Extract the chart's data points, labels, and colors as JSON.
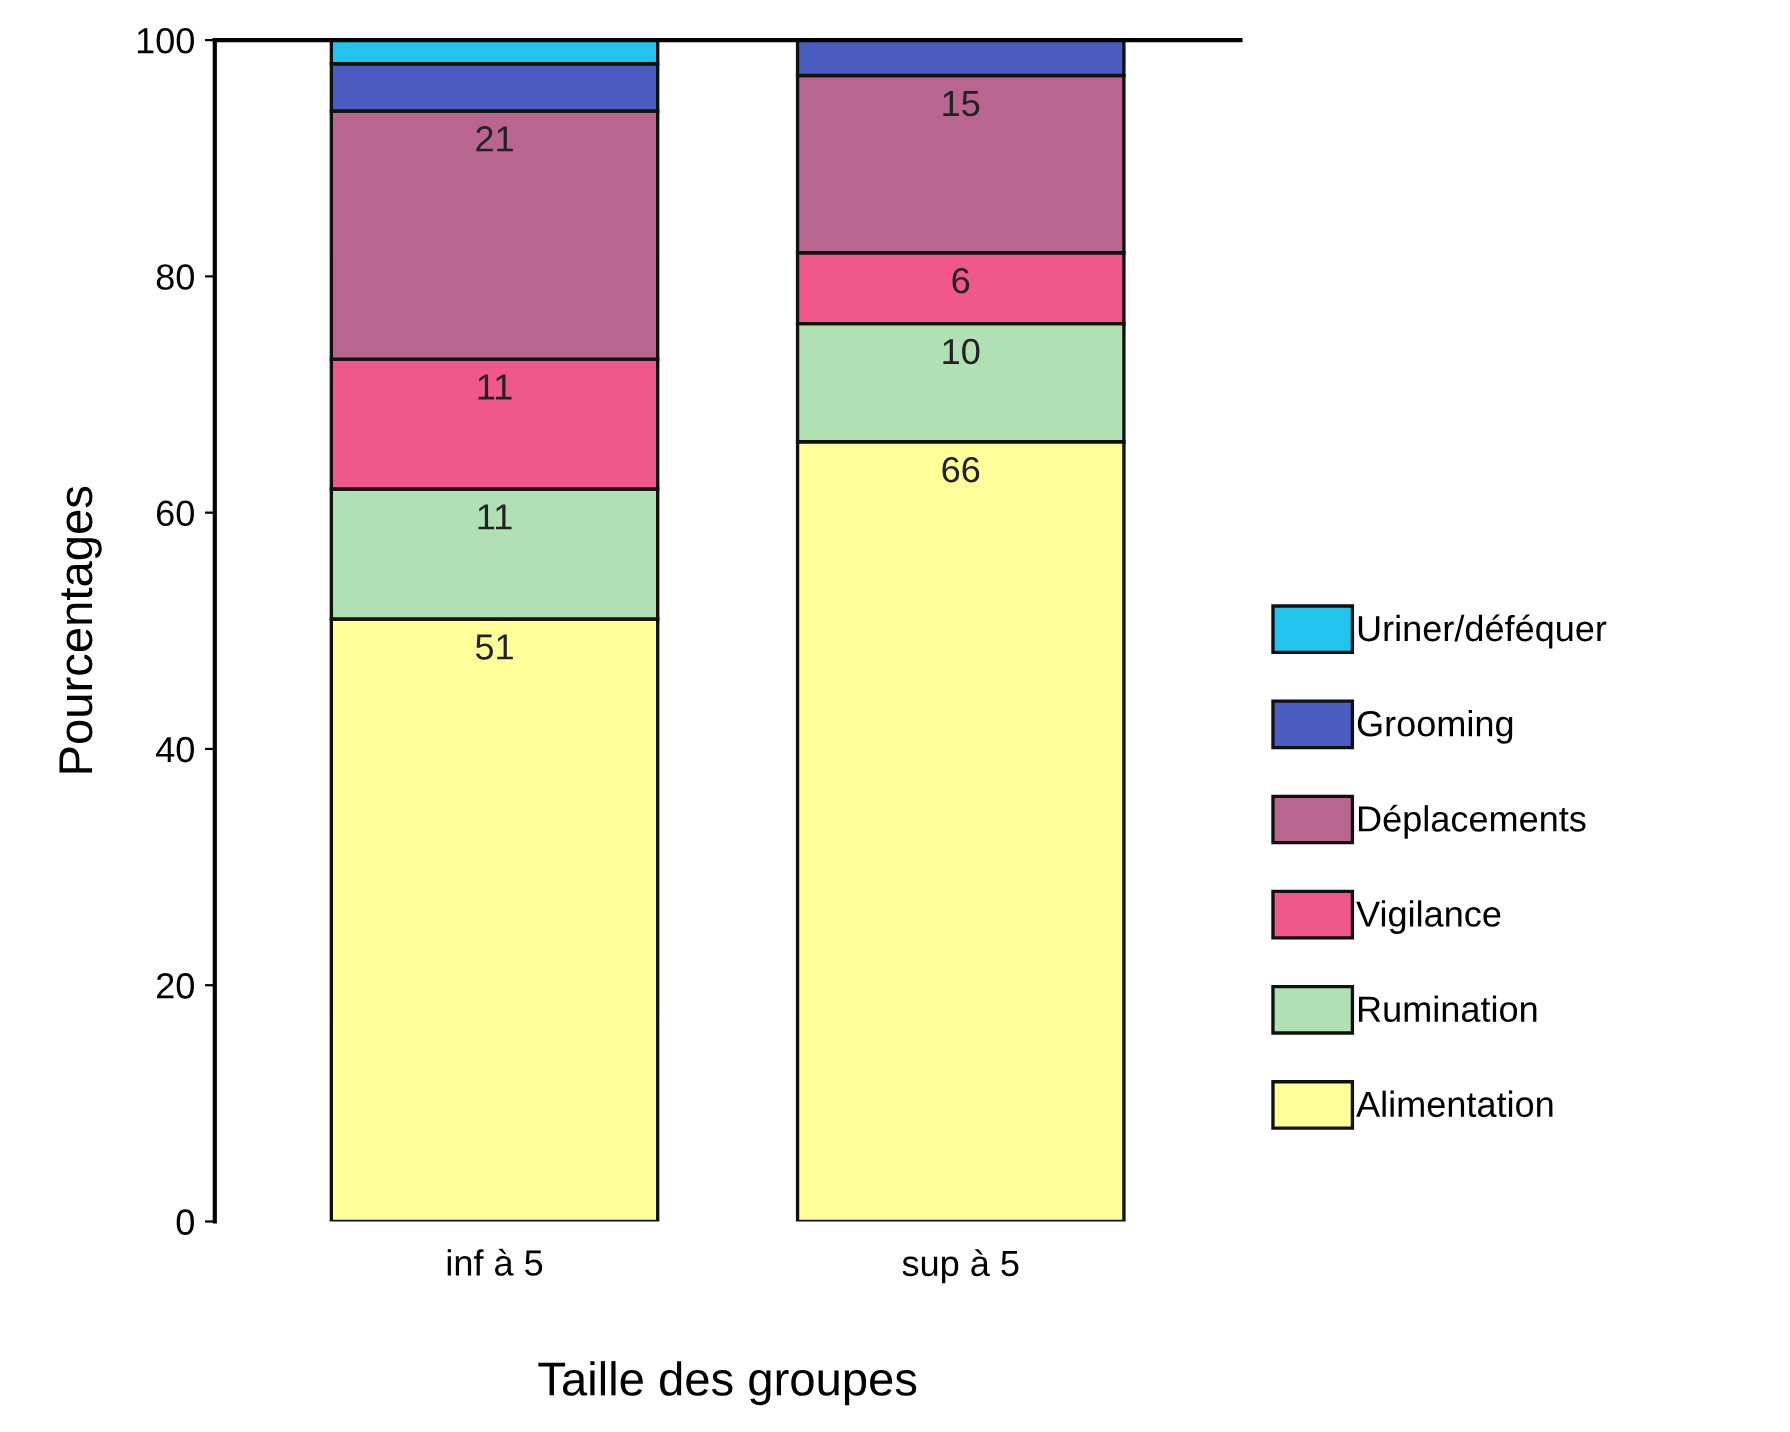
{
  "chart_data": {
    "type": "bar",
    "stacked": true,
    "xlabel": "Taille des groupes",
    "ylabel": "Pourcentages",
    "categories": [
      "inf à 5",
      "sup à 5"
    ],
    "ylim": [
      0,
      100
    ],
    "yticks": [
      0,
      20,
      40,
      60,
      80,
      100
    ],
    "grid": false,
    "legend": "right",
    "series": [
      {
        "name": "Alimentation",
        "color": "#ffff99",
        "values": [
          51,
          66
        ],
        "value_labels": [
          "51",
          "66"
        ]
      },
      {
        "name": "Rumination",
        "color": "#b0e0b4",
        "values": [
          11,
          10
        ],
        "value_labels": [
          "11",
          "10"
        ]
      },
      {
        "name": "Vigilance",
        "color": "#f0578a",
        "values": [
          11,
          6
        ],
        "value_labels": [
          "11",
          "6"
        ]
      },
      {
        "name": "Déplacements",
        "color": "#b8658f",
        "values": [
          21,
          15
        ],
        "value_labels": [
          "21",
          "15"
        ]
      },
      {
        "name": "Grooming",
        "color": "#4a5cc0",
        "values": [
          4,
          3
        ],
        "value_labels": [
          null,
          null
        ]
      },
      {
        "name": "Uriner/déféquer",
        "color": "#22c4ee",
        "values": [
          2,
          0
        ],
        "value_labels": [
          null,
          null
        ]
      }
    ]
  }
}
